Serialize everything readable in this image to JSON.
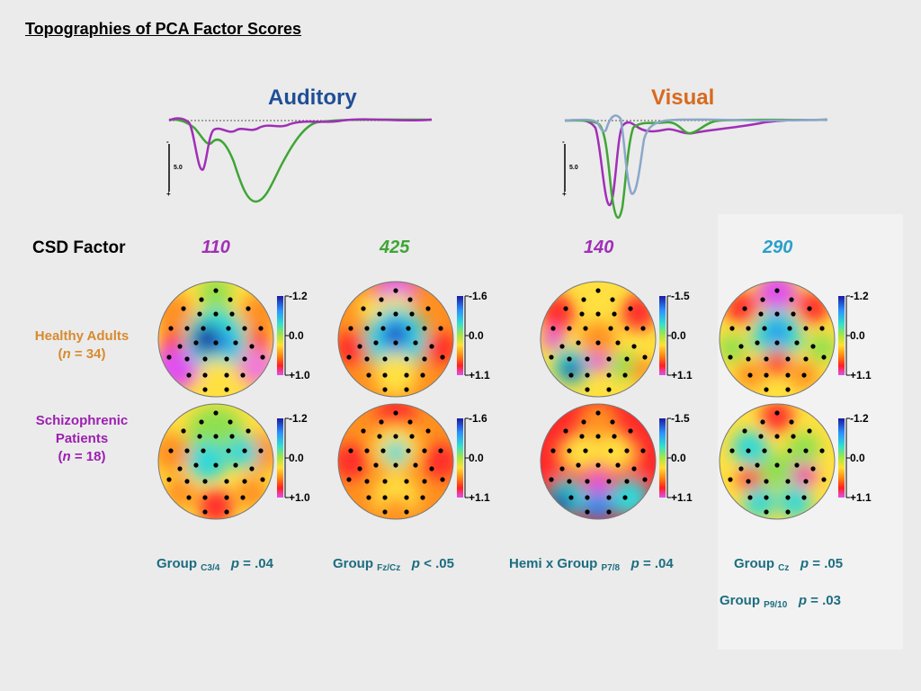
{
  "title": "Topographies of PCA Factor Scores",
  "modalities": [
    {
      "label": "Auditory",
      "color": "#1f4e96"
    },
    {
      "label": "Visual",
      "color": "#d86a1e"
    }
  ],
  "waveform_scale": {
    "label": "5.0",
    "top_mark": "-",
    "bottom_mark": "+"
  },
  "waveform_colors": {
    "healthy": "#3fa535",
    "schizophrenic": "#a02fb6",
    "visual_third": "#8aa7c8"
  },
  "csd_label": "CSD Factor",
  "factors": [
    {
      "label": "110",
      "color": "#a02fb6"
    },
    {
      "label": "425",
      "color": "#3fa535"
    },
    {
      "label": "140",
      "color": "#a02fb6"
    },
    {
      "label": "290",
      "color": "#2a9fc8"
    }
  ],
  "groups": [
    {
      "name": "Healthy Adults",
      "n_label": "n",
      "n_text": " = 34)",
      "color": "#d88a2e"
    },
    {
      "name_line1": "Schizophrenic",
      "name_line2": "Patients",
      "n_label": "n",
      "n_text": " = 18)",
      "color": "#9c1fb0"
    }
  ],
  "color_scales": [
    {
      "top": "-1.2",
      "mid": "0.0",
      "bottom": "+1.0"
    },
    {
      "top": "-1.6",
      "mid": "0.0",
      "bottom": "+1.1"
    },
    {
      "top": "-1.5",
      "mid": "0.0",
      "bottom": "+1.1"
    },
    {
      "top": "-1.2",
      "mid": "0.0",
      "bottom": "+1.1"
    }
  ],
  "stats": [
    {
      "prefix": "Group ",
      "sub": "C3/4",
      "p": "p",
      "value": " = .04"
    },
    {
      "prefix": "Group ",
      "sub": "Fz/Cz",
      "p": "p",
      "value": " < .05"
    },
    {
      "prefix": "Hemi x Group ",
      "sub": "P7/8",
      "p": "p",
      "value": " = .04"
    },
    {
      "prefix": "Group ",
      "sub": "Cz",
      "p": "p",
      "value": " = .05"
    },
    {
      "prefix": "Group ",
      "sub": "P9/10",
      "p": "p",
      "value": " = .03"
    }
  ]
}
